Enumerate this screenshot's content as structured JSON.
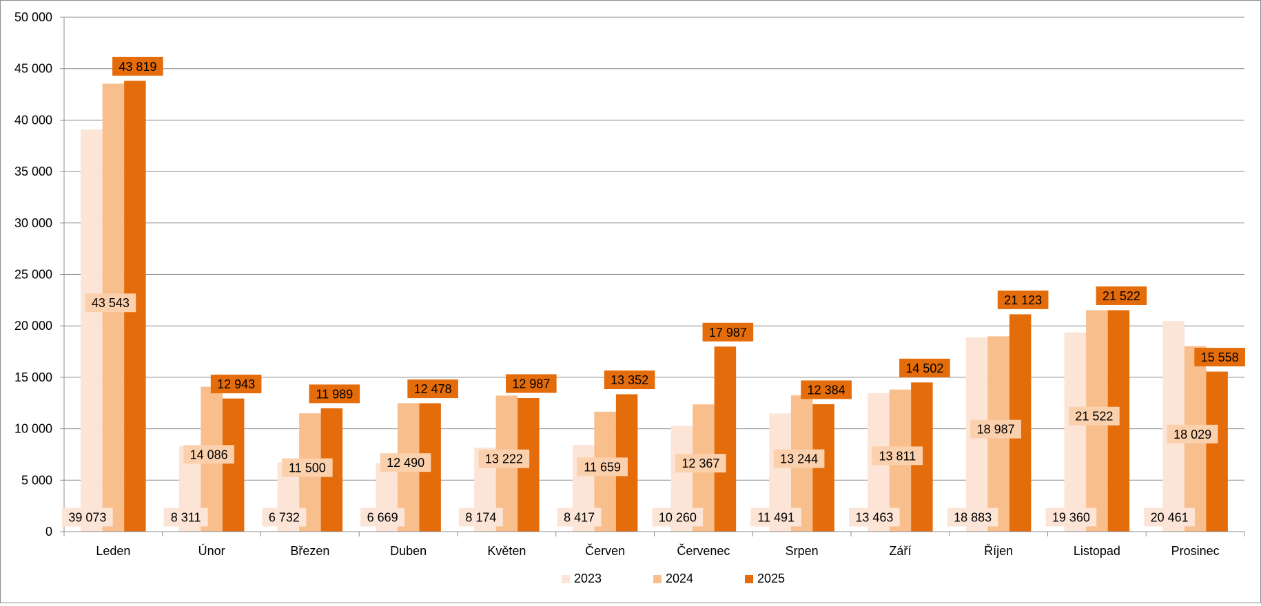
{
  "chart_data": {
    "type": "bar",
    "title": "",
    "xlabel": "",
    "ylabel": "",
    "ylim": [
      0,
      50000
    ],
    "ytick_labels": [
      "0",
      "5 000",
      "10 000",
      "15 000",
      "20 000",
      "25 000",
      "30 000",
      "35 000",
      "40 000",
      "45 000",
      "50 000"
    ],
    "ytick_values": [
      0,
      5000,
      10000,
      15000,
      20000,
      25000,
      30000,
      35000,
      40000,
      45000,
      50000
    ],
    "grid": true,
    "legend_position": "bottom",
    "categories": [
      "Leden",
      "Únor",
      "Březen",
      "Duben",
      "Květen",
      "Červen",
      "Červenec",
      "Srpen",
      "Září",
      "Říjen",
      "Listopad",
      "Prosinec"
    ],
    "series": [
      {
        "name": "2023",
        "color": "#fce4d6",
        "values": [
          39073,
          8311,
          6732,
          6669,
          8174,
          8417,
          10260,
          11491,
          13463,
          18883,
          19360,
          20461
        ],
        "labels": [
          "39 073",
          "8 311",
          "6 732",
          "6 669",
          "8 174",
          "8 417",
          "10 260",
          "11 491",
          "13 463",
          "18 883",
          "19 360",
          "20 461"
        ]
      },
      {
        "name": "2024",
        "color": "#f8bf8d",
        "values": [
          43543,
          14086,
          11500,
          12490,
          13222,
          11659,
          12367,
          13244,
          13811,
          18987,
          21522,
          18029
        ],
        "labels": [
          "43 543",
          "14 086",
          "11 500",
          "12 490",
          "13 222",
          "11 659",
          "12 367",
          "13 244",
          "13 811",
          "18 987",
          "21 522",
          "18 029"
        ]
      },
      {
        "name": "2025",
        "color": "#e46c0a",
        "values": [
          43819,
          12943,
          11989,
          12478,
          12987,
          13352,
          17987,
          12384,
          14502,
          21123,
          21522,
          15558
        ],
        "labels": [
          "43 819",
          "12 943",
          "11 989",
          "12 478",
          "12 987",
          "13 352",
          "17 987",
          "12 384",
          "14 502",
          "21 123",
          "21 522",
          "15 558"
        ]
      }
    ]
  }
}
